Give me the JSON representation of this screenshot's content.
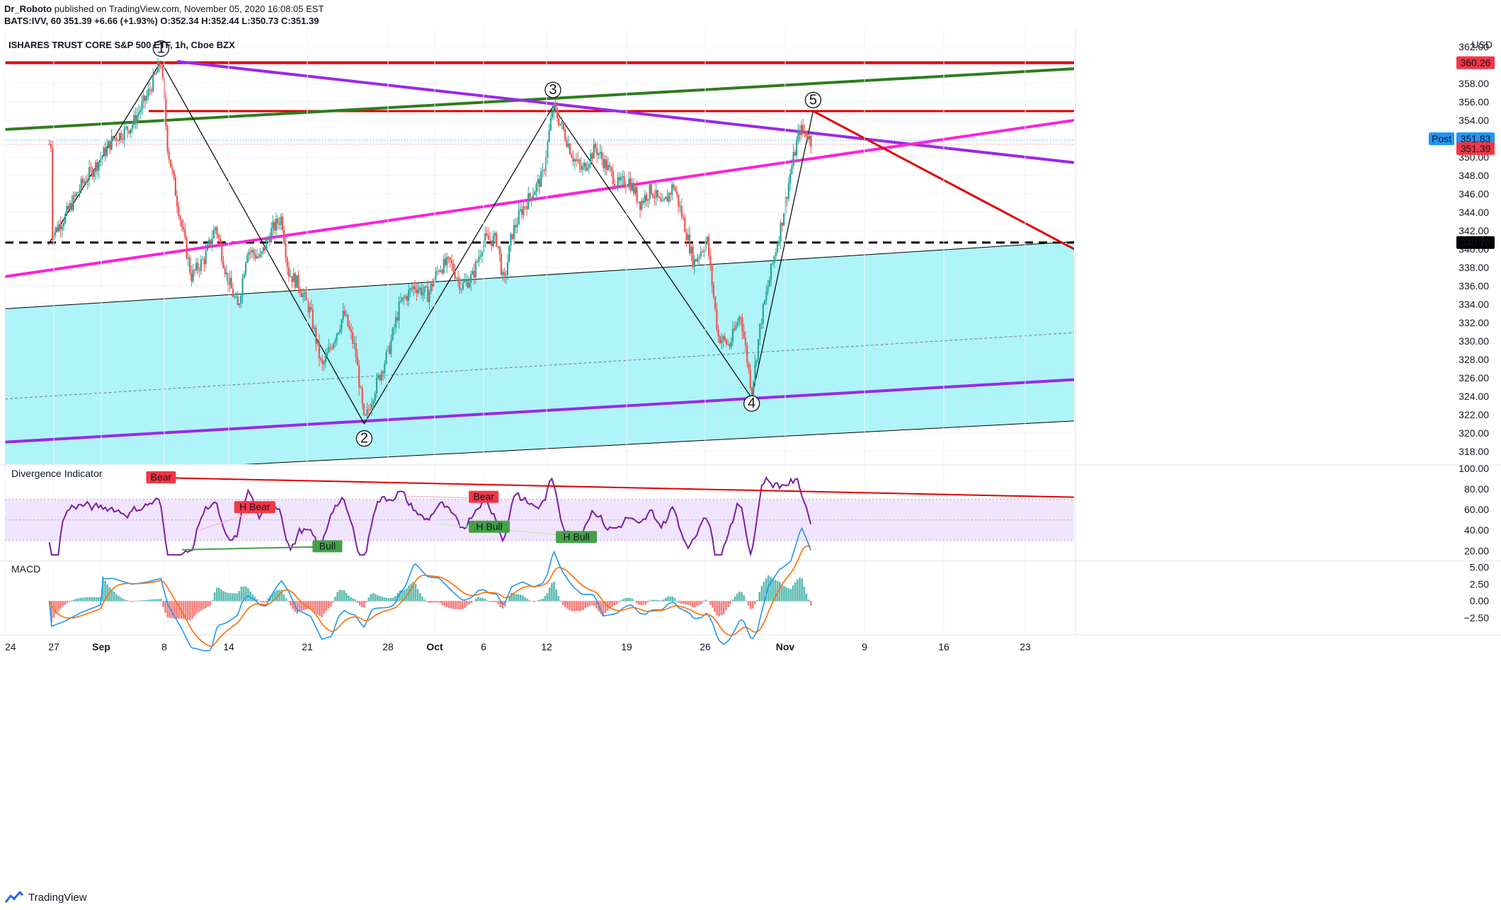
{
  "header": {
    "author": "Dr_Roboto",
    "published_line": "published on TradingView.com, November 05, 2020 16:08:05 EST",
    "symbol_line": "BATS:IVV, 60  351.39  +6.66 (+1.93%)  O:352.34  H:352.44  L:350.73  C:351.39"
  },
  "footer": {
    "brand": "TradingView"
  },
  "chart_data": {
    "type": "candlestick",
    "title": "ISHARES TRUST CORE S&P 500 ETF, 1h, Cboe BZX",
    "currency_label": "USD",
    "x_tick_labels": [
      "24",
      "27",
      "Sep",
      "8",
      "14",
      "21",
      "28",
      "Oct",
      "6",
      "12",
      "19",
      "26",
      "Nov",
      "9",
      "16",
      "23"
    ],
    "y_ticks": [
      318,
      320,
      322,
      324,
      326,
      328,
      330,
      332,
      334,
      336,
      338,
      340,
      342,
      344,
      346,
      348,
      350,
      352,
      354,
      356,
      358,
      360,
      362
    ],
    "ylim": [
      316.6,
      364.0
    ],
    "price_badges": [
      {
        "label": "360.26",
        "value": 360.26,
        "color": "#f23645"
      },
      {
        "label": "Post",
        "value": 351.83,
        "color": "#2196f3"
      },
      {
        "label": "351.83",
        "value": 351.83,
        "color": "#2196f3"
      },
      {
        "label": "351.39",
        "value": 351.39,
        "color": "#f23645"
      },
      {
        "label": "340.70",
        "value": 340.7,
        "color": "#000000"
      }
    ],
    "price_path": [
      [
        -0.2,
        341.5
      ],
      [
        1,
        343.5
      ],
      [
        2.5,
        347
      ],
      [
        4,
        349.5
      ],
      [
        5.3,
        352
      ],
      [
        6,
        352.5
      ],
      [
        7,
        353.5
      ],
      [
        8.3,
        356.5
      ],
      [
        9.6,
        360.4
      ],
      [
        10.2,
        351
      ],
      [
        11,
        345.5
      ],
      [
        12.3,
        337
      ],
      [
        13.5,
        339
      ],
      [
        14.5,
        342.5
      ],
      [
        15.5,
        337
      ],
      [
        16.5,
        333.5
      ],
      [
        17.3,
        340
      ],
      [
        18.5,
        339
      ],
      [
        19.5,
        342
      ],
      [
        20.4,
        343.5
      ],
      [
        21,
        337.5
      ],
      [
        22,
        336
      ],
      [
        23,
        333
      ],
      [
        24,
        327
      ],
      [
        25,
        330
      ],
      [
        26,
        333
      ],
      [
        27,
        329
      ],
      [
        27.8,
        321
      ],
      [
        28.8,
        325
      ],
      [
        30,
        329
      ],
      [
        31,
        334
      ],
      [
        32.3,
        336
      ],
      [
        33.5,
        335
      ],
      [
        34.5,
        338
      ],
      [
        35.5,
        338.5
      ],
      [
        36.5,
        336
      ],
      [
        37.5,
        337
      ],
      [
        38.5,
        341
      ],
      [
        39.7,
        341
      ],
      [
        40.3,
        336
      ],
      [
        41,
        341.5
      ],
      [
        41.8,
        344
      ],
      [
        42.8,
        346
      ],
      [
        43.8,
        348
      ],
      [
        44.7,
        355.5
      ],
      [
        45.6,
        353
      ],
      [
        46.5,
        350
      ],
      [
        47.3,
        348.5
      ],
      [
        48.5,
        351
      ],
      [
        49.5,
        349
      ],
      [
        50.5,
        347
      ],
      [
        51.5,
        347.5
      ],
      [
        52.5,
        345
      ],
      [
        53.5,
        346.5
      ],
      [
        54.5,
        344.5
      ],
      [
        55.5,
        347
      ],
      [
        56.5,
        342.5
      ],
      [
        57.3,
        338.5
      ],
      [
        58.5,
        341
      ],
      [
        59.5,
        330.5
      ],
      [
        60.5,
        329.5
      ],
      [
        61.5,
        333
      ],
      [
        62.5,
        324.5
      ],
      [
        63.3,
        332
      ],
      [
        64.3,
        338
      ],
      [
        65.2,
        343
      ],
      [
        66,
        348.5
      ],
      [
        66.8,
        353
      ],
      [
        67.5,
        352.5
      ],
      [
        67.9,
        351.4
      ]
    ],
    "divergence_indicator": {
      "label": "Divergence Indicator",
      "y_ticks": [
        "100.00",
        "80.00",
        "60.00",
        "40.00",
        "20.00"
      ],
      "ylim": [
        12,
        102
      ],
      "band": [
        30,
        70
      ],
      "signals": [
        {
          "label": "Bear",
          "x": 9.6,
          "value": 91,
          "color": "#f23645"
        },
        {
          "label": "H Bear",
          "x": 18.0,
          "value": 62,
          "color": "#f23645"
        },
        {
          "label": "Bull",
          "x": 24.5,
          "value": 24,
          "color": "#43a047"
        },
        {
          "label": "Bear",
          "x": 38.5,
          "value": 72,
          "color": "#f23645"
        },
        {
          "label": "H Bull",
          "x": 39.0,
          "value": 43,
          "color": "#43a047"
        },
        {
          "label": "H Bull",
          "x": 46.8,
          "value": 33,
          "color": "#43a047"
        }
      ]
    },
    "macd": {
      "label": "MACD",
      "y_ticks": [
        "5.00",
        "2.50",
        "0.00",
        "−2.50"
      ],
      "ylim": [
        -4.6,
        5.7
      ]
    },
    "wave_labels": [
      {
        "label": "1",
        "x": 9.6,
        "value": 361.8
      },
      {
        "label": "2",
        "x": 27.8,
        "value": 319.4
      },
      {
        "label": "3",
        "x": 44.7,
        "value": 357.3
      },
      {
        "label": "4",
        "x": 62.5,
        "value": 323.2
      },
      {
        "label": "5",
        "x": 68.0,
        "value": 356.2
      }
    ]
  }
}
